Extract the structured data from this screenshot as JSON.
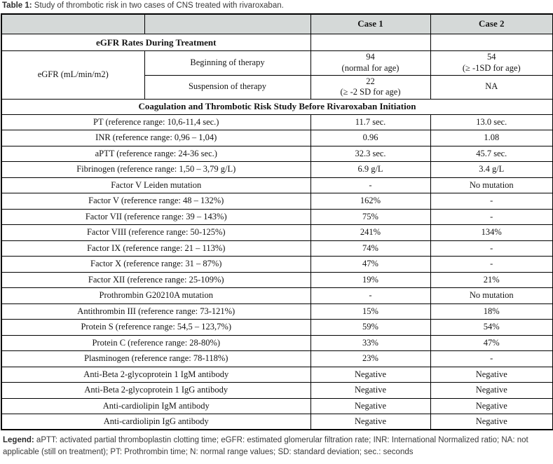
{
  "caption": {
    "label": "Table 1:",
    "text": " Study of thrombotic risk in two cases of CNS treated with rivaroxaban."
  },
  "table": {
    "header": {
      "corner1": "",
      "corner2": "",
      "case1": "Case 1",
      "case2": "Case 2"
    },
    "header_fill": "#d5d9d8",
    "border_color": "#000000",
    "rows": [
      {
        "type": "span2",
        "label": "eGFR Rates During Treatment",
        "case1": "",
        "case2": ""
      },
      {
        "type": "group",
        "label": "eGFR (mL/min/m2)",
        "subrows": [
          {
            "sublabel": "Beginning of therapy",
            "case1": [
              "94",
              "(normal for age)"
            ],
            "case2": [
              "54",
              "(≥ -1SD for age)"
            ]
          },
          {
            "sublabel": "Suspension of therapy",
            "case1": [
              "22",
              "(≥ -2 SD for age)"
            ],
            "case2": "NA"
          }
        ]
      },
      {
        "type": "full",
        "label": "Coagulation and Thrombotic Risk Study Before Rivaroxaban Initiation"
      },
      {
        "type": "data",
        "label": "PT (reference range: 10,6-11,4 sec.)",
        "case1": "11.7 sec.",
        "case2": "13.0 sec."
      },
      {
        "type": "data",
        "label": "INR (reference range: 0,96 – 1,04)",
        "case1": "0.96",
        "case2": "1.08"
      },
      {
        "type": "data",
        "label": "aPTT (reference range: 24-36 sec.)",
        "case1": "32.3 sec.",
        "case2": "45.7 sec."
      },
      {
        "type": "data",
        "label": "Fibrinogen (reference range: 1,50 – 3,79 g/L)",
        "case1": "6.9 g/L",
        "case2": "3.4 g/L"
      },
      {
        "type": "data",
        "label": "Factor V Leiden mutation",
        "case1": "-",
        "case2": "No mutation"
      },
      {
        "type": "data",
        "label": "Factor V (reference range: 48 – 132%)",
        "case1": "162%",
        "case2": "-"
      },
      {
        "type": "data",
        "label": "Factor VII (reference range: 39 – 143%)",
        "case1": "75%",
        "case2": "-"
      },
      {
        "type": "data",
        "label": "Factor VIII (reference range: 50-125%)",
        "case1": "241%",
        "case2": "134%"
      },
      {
        "type": "data",
        "label": "Factor IX (reference range: 21 – 113%)",
        "case1": "74%",
        "case2": "-"
      },
      {
        "type": "data",
        "label": "Factor X (reference range: 31 – 87%)",
        "case1": "47%",
        "case2": "-"
      },
      {
        "type": "data",
        "label": "Factor XII (reference range: 25-109%)",
        "case1": "19%",
        "case2": "21%"
      },
      {
        "type": "data",
        "label": "Prothrombin G20210A mutation",
        "case1": "-",
        "case2": "No mutation"
      },
      {
        "type": "data",
        "label": "Antithrombin III (reference range: 73-121%)",
        "case1": "15%",
        "case2": "18%"
      },
      {
        "type": "data",
        "label": "Protein S (reference range: 54,5 – 123,7%)",
        "case1": "59%",
        "case2": "54%"
      },
      {
        "type": "data",
        "label": "Protein C (reference range: 28-80%)",
        "case1": "33%",
        "case2": "47%"
      },
      {
        "type": "data",
        "label": "Plasminogen (reference range: 78-118%)",
        "case1": "23%",
        "case2": "-"
      },
      {
        "type": "data",
        "label": "Anti-Beta 2-glycoprotein 1 IgM antibody",
        "case1": "Negative",
        "case2": "Negative"
      },
      {
        "type": "data",
        "label": "Anti-Beta 2-glycoprotein 1 IgG antibody",
        "case1": "Negative",
        "case2": "Negative"
      },
      {
        "type": "data",
        "label": "Anti-cardiolipin IgM antibody",
        "case1": "Negative",
        "case2": "Negative"
      },
      {
        "type": "data",
        "label": "Anti-cardiolipin IgG antibody",
        "case1": "Negative",
        "case2": "Negative"
      }
    ]
  },
  "legend": {
    "label": "Legend:",
    "text": " aPTT: activated partial thromboplastin clotting time; eGFR: estimated glomerular filtration rate; INR: International Normalized ratio; NA: not applicable (still on treatment); PT: Prothrombin time; N: normal range values; SD: standard deviation; sec.: seconds"
  }
}
